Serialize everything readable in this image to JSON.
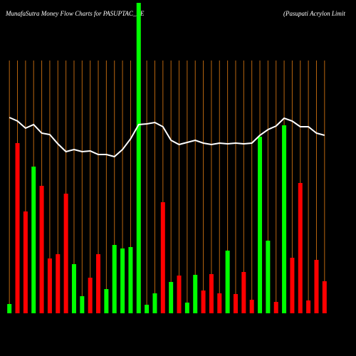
{
  "chart_data": {
    "type": "bar",
    "title": "MunafaSutra  Money  Flow  Charts for PASUPTAC_BE",
    "subtitle": "(Pasupati  Acrylon  Limit",
    "categories": [
      null,
      null,
      null,
      null,
      null,
      null,
      null,
      null,
      null,
      null,
      null,
      null,
      null,
      null,
      null,
      null,
      null,
      null,
      null,
      null,
      null,
      null,
      null,
      null,
      null,
      null,
      null,
      null,
      null,
      null,
      null,
      null,
      null,
      null,
      null,
      null,
      null,
      null,
      null,
      null
    ],
    "ylim": [
      0,
      436
    ],
    "y2lim": [
      0,
      436
    ],
    "grid": true,
    "grid_color": "#b8650f",
    "background": "#000000",
    "series": [
      {
        "type": "bar",
        "values": [
          13,
          239,
          143,
          206,
          179,
          77,
          83,
          168,
          69,
          24,
          50,
          83,
          34,
          96,
          91,
          93,
          436,
          12,
          28,
          156,
          44,
          53,
          15,
          54,
          32,
          55,
          28,
          88,
          27,
          58,
          19,
          248,
          102,
          16,
          264,
          78,
          183,
          18,
          75,
          45
        ],
        "colors": [
          "#00ff00",
          "#ff0000",
          "#ff0000",
          "#00ff00",
          "#ff0000",
          "#ff0000",
          "#ff0000",
          "#ff0000",
          "#00ff00",
          "#00ff00",
          "#ff0000",
          "#ff0000",
          "#00ff00",
          "#00ff00",
          "#00ff00",
          "#00ff00",
          "#00ff00",
          "#00ff00",
          "#00ff00",
          "#ff0000",
          "#00ff00",
          "#ff0000",
          "#00ff00",
          "#00ff00",
          "#ff0000",
          "#ff0000",
          "#ff0000",
          "#00ff00",
          "#ff0000",
          "#ff0000",
          "#ff0000",
          "#00ff00",
          "#00ff00",
          "#ff0000",
          "#00ff00",
          "#ff0000",
          "#ff0000",
          "#ff0000",
          "#ff0000",
          "#ff0000"
        ]
      },
      {
        "type": "line",
        "axis": "y2",
        "color": "#ffffff",
        "values": [
          275,
          270,
          260,
          265,
          253,
          251,
          238,
          227,
          230,
          227,
          228,
          223,
          223,
          220,
          230,
          245,
          265,
          266,
          268,
          262,
          243,
          237,
          240,
          243,
          239,
          237,
          239,
          238,
          239,
          238,
          239,
          250,
          258,
          263,
          274,
          270,
          262,
          262,
          253,
          250
        ]
      }
    ]
  }
}
